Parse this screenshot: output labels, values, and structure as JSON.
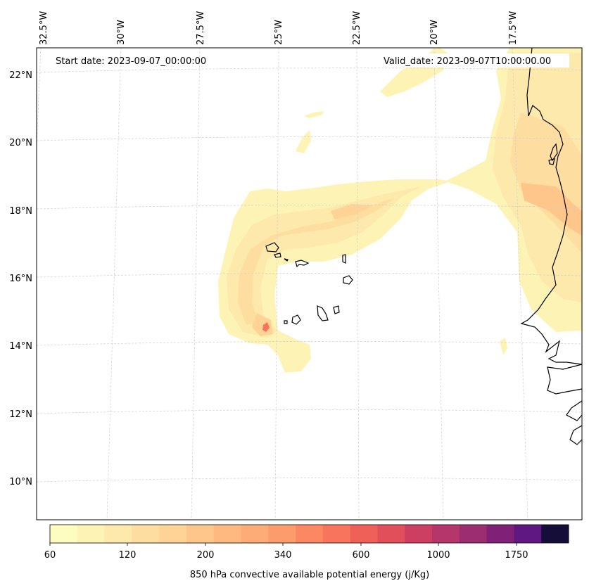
{
  "header": {
    "start_date": "Start date: 2023-09-07_00:00:00",
    "valid_date": "Valid_date: 2023-09-07T10:00:00.00"
  },
  "lon_labels": [
    "32.5°W",
    "30°W",
    "27.5°W",
    "25°W",
    "22.5°W",
    "20°W",
    "17.5°W"
  ],
  "lat_labels": [
    "22°N",
    "20°N",
    "18°N",
    "16°N",
    "14°N",
    "12°N",
    "10°N"
  ],
  "colorbar": {
    "label": "850 hPa convective available potential energy (j/Kg)",
    "tick_labels": [
      "60",
      "120",
      "200",
      "340",
      "600",
      "1000",
      "1750"
    ],
    "colors": [
      "#fcfdbf",
      "#fcf3b5",
      "#fde9ac",
      "#fddea0",
      "#fed395",
      "#fec68a",
      "#feb97f",
      "#fdac75",
      "#fc9c6b",
      "#fb8862",
      "#f7755c",
      "#ef6158",
      "#e14f5b",
      "#cd3f62",
      "#b5366b",
      "#9b2d71",
      "#7f2177",
      "#5f187f",
      "#150e38"
    ]
  },
  "field_colors": {
    "c0": "#fcf3b5",
    "c1": "#fde9ac",
    "c2": "#fddea0",
    "c3": "#fed395",
    "c4": "#fec68a",
    "c5": "#fdac75",
    "c6": "#f7755c"
  },
  "coastline_color": "#000000"
}
